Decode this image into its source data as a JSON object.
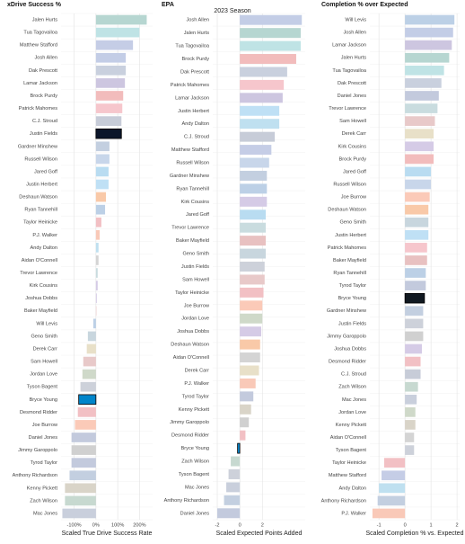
{
  "title": "2023 Season",
  "bar_colors": {
    "Jalen Hurts": "#b6d6d1",
    "Tua Tagovailoa": "#bfe3e5",
    "Matthew Stafford": "#c5cde6",
    "Josh Allen": "#c3cde6",
    "Dak Prescott": "#c9d0de",
    "Lamar Jackson": "#cdc6e0",
    "Brock Purdy": "#f2bcbc",
    "Patrick Mahomes": "#f6c6cc",
    "C.J. Stroud": "#c7ccd8",
    "Justin Fields": "#cdd1da",
    "Gardner Minshew": "#c3cfe0",
    "Russell Wilson": "#c8d6ea",
    "Jared Goff": "#b9dcf1",
    "Justin Herbert": "#bfe0f5",
    "Deshaun Watson": "#f9c9a8",
    "Ryan Tannehill": "#bcd0e6",
    "Taylor Heinicke": "#f2c0c4",
    "P.J. Walker": "#f9c9b8",
    "Andy Dalton": "#bfe0f0",
    "Aidan O'Connell": "#d4d4d4",
    "Trevor Lawrence": "#c9dcdf",
    "Kirk Cousins": "#d5cbe6",
    "Joshua Dobbs": "#d5cbe6",
    "Baker Mayfield": "#e8c1c1",
    "Will Levis": "#bcd0e6",
    "Geno Smith": "#c8d6de",
    "Derek Carr": "#e8e0c8",
    "Sam Howell": "#e8c9c9",
    "Jordan Love": "#cfd9c9",
    "Tyson Bagent": "#cdd1da",
    "Bryce Young": "#bfe0f0",
    "Desmond Ridder": "#f2c0c4",
    "Joe Burrow": "#fbcab8",
    "Daniel Jones": "#c3cadd",
    "Jimmy Garoppolo": "#d0d0d0",
    "Tyrod Taylor": "#c3cadd",
    "Anthony Richardson": "#c3cfe0",
    "Kenny Pickett": "#d9d4c8",
    "Zach Wilson": "#c7d9d0",
    "Mac Jones": "#c9cfdc"
  },
  "chart_data": [
    {
      "type": "bar",
      "title": "xDrive Success %",
      "x_label": "Scaled True Drive Success Rate",
      "highlight_colors": {
        "Justin Fields": "#0b162a",
        "Bryce Young": "#0085ca"
      },
      "categories": [
        "Jalen Hurts",
        "Tua Tagovailoa",
        "Matthew Stafford",
        "Josh Allen",
        "Dak Prescott",
        "Lamar Jackson",
        "Brock Purdy",
        "Patrick Mahomes",
        "C.J. Stroud",
        "Justin Fields",
        "Gardner Minshew",
        "Russell Wilson",
        "Jared Goff",
        "Justin Herbert",
        "Deshaun Watson",
        "Ryan Tannehill",
        "Taylor Heinicke",
        "P.J. Walker",
        "Andy Dalton",
        "Aidan O'Connell",
        "Trevor Lawrence",
        "Kirk Cousins",
        "Joshua Dobbs",
        "Baker Mayfield",
        "Will Levis",
        "Geno Smith",
        "Derek Carr",
        "Sam Howell",
        "Jordan Love",
        "Tyson Bagent",
        "Bryce Young",
        "Desmond Ridder",
        "Joe Burrow",
        "Daniel Jones",
        "Jimmy Garoppolo",
        "Tyrod Taylor",
        "Anthony Richardson",
        "Kenny Pickett",
        "Zach Wilson",
        "Mac Jones"
      ],
      "values": [
        233,
        200,
        170,
        137,
        137,
        133,
        125,
        121,
        117,
        117,
        62,
        62,
        58,
        58,
        46,
        42,
        25,
        17,
        12,
        12,
        8,
        8,
        4,
        2,
        -12,
        -37,
        -42,
        -58,
        -62,
        -71,
        -79,
        -83,
        -96,
        -112,
        -112,
        -112,
        -121,
        -142,
        -142,
        -154
      ],
      "xlim": [
        -160,
        260
      ],
      "xticks": [
        {
          "value": -100,
          "label": "-100%"
        },
        {
          "value": 0,
          "label": "0%"
        },
        {
          "value": 100,
          "label": "100%"
        },
        {
          "value": 200,
          "label": "200%"
        }
      ]
    },
    {
      "type": "bar",
      "title": "EPA",
      "x_label": "Scaled Expected Points Added",
      "highlight_colors": {
        "Bryce Young": "#0085ca"
      },
      "categories": [
        "Josh Allen",
        "Jalen Hurts",
        "Tua Tagovailoa",
        "Brock Purdy",
        "Dak Prescott",
        "Patrick Mahomes",
        "Lamar Jackson",
        "Justin Herbert",
        "Andy Dalton",
        "C.J. Stroud",
        "Matthew Stafford",
        "Russell Wilson",
        "Gardner Minshew",
        "Ryan Tannehill",
        "Kirk Cousins",
        "Jared Goff",
        "Trevor Lawrence",
        "Baker Mayfield",
        "Geno Smith",
        "Justin Fields",
        "Sam Howell",
        "Taylor Heinicke",
        "Joe Burrow",
        "Jordan Love",
        "Joshua Dobbs",
        "Deshaun Watson",
        "Aidan O'Connell",
        "Derek Carr",
        "P.J. Walker",
        "Tyrod Taylor",
        "Kenny Pickett",
        "Jimmy Garoppolo",
        "Desmond Ridder",
        "Bryce Young",
        "Zach Wilson",
        "Tyson Bagent",
        "Mac Jones",
        "Anthony Richardson",
        "Daniel Jones"
      ],
      "values": [
        5.5,
        5.4,
        5.4,
        5.0,
        4.2,
        3.9,
        3.8,
        3.5,
        3.5,
        3.1,
        2.8,
        2.6,
        2.4,
        2.4,
        2.4,
        2.3,
        2.3,
        2.3,
        2.3,
        2.2,
        2.2,
        2.1,
        2.0,
        2.0,
        1.9,
        1.8,
        1.8,
        1.7,
        1.4,
        1.2,
        1.0,
        0.8,
        0.5,
        -0.2,
        -0.8,
        -1.0,
        -1.2,
        -1.4,
        -2.0
      ],
      "xlim": [
        -2.4,
        5.8
      ],
      "xticks": [
        -2,
        0,
        2
      ]
    },
    {
      "type": "bar",
      "title": "Completion % over Expected",
      "x_label": "Scaled Completion % vs. Expected",
      "highlight_colors": {
        "Bryce Young": "#101820"
      },
      "categories": [
        "Will Levis",
        "Josh Allen",
        "Lamar Jackson",
        "Jalen Hurts",
        "Tua Tagovailoa",
        "Dak Prescott",
        "Daniel Jones",
        "Trevor Lawrence",
        "Sam Howell",
        "Derek Carr",
        "Kirk Cousins",
        "Brock Purdy",
        "Jared Goff",
        "Russell Wilson",
        "Joe Burrow",
        "Deshaun Watson",
        "Geno Smith",
        "Justin Herbert",
        "Patrick Mahomes",
        "Baker Mayfield",
        "Ryan Tannehill",
        "Tyrod Taylor",
        "Bryce Young",
        "Gardner Minshew",
        "Justin Fields",
        "Jimmy Garoppolo",
        "Joshua Dobbs",
        "Desmond Ridder",
        "C.J. Stroud",
        "Zach Wilson",
        "Mac Jones",
        "Jordan Love",
        "Kenny Pickett",
        "Aidan O'Connell",
        "Tyson Bagent",
        "Taylor Heinicke",
        "Matthew Stafford",
        "Andy Dalton",
        "Anthony Richardson",
        "P.J. Walker"
      ],
      "values": [
        1.9,
        1.85,
        1.8,
        1.7,
        1.5,
        1.4,
        1.3,
        1.25,
        1.15,
        1.1,
        1.1,
        1.1,
        1.0,
        1.0,
        0.95,
        0.9,
        0.9,
        0.9,
        0.85,
        0.85,
        0.8,
        0.8,
        0.75,
        0.7,
        0.7,
        0.7,
        0.65,
        0.6,
        0.6,
        0.5,
        0.45,
        0.4,
        0.4,
        0.35,
        0.35,
        -0.8,
        -0.9,
        -1.0,
        -1.05,
        -1.25
      ],
      "xlim": [
        -1.35,
        2.1
      ],
      "xticks": [
        -1,
        0,
        1,
        2
      ]
    }
  ]
}
